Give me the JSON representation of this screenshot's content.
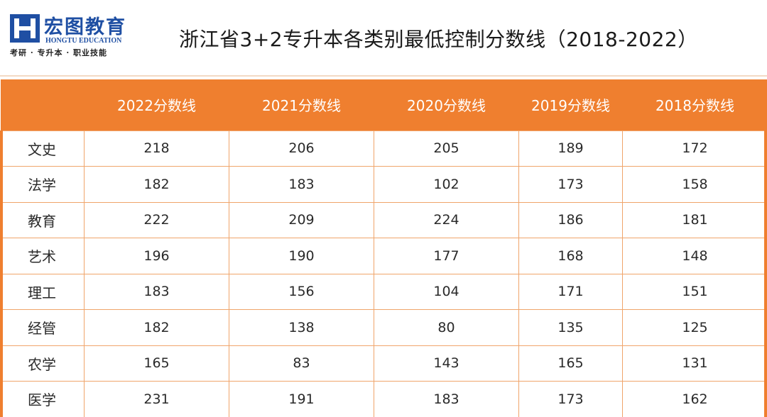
{
  "header": {
    "logo": {
      "name": "宏图教育",
      "english": "HONGTU EDUCATION",
      "slogan": "考研 · 专升本 · 职业技能"
    },
    "title": "浙江省3+2专升本各类别最低控制分数线（2018-2022）"
  },
  "colors": {
    "accent": "#ef7f2f",
    "brand": "#1f4fa3"
  },
  "table": {
    "headers": [
      "",
      "2022分数线",
      "2021分数线",
      "2020分数线",
      "2019分数线",
      "2018分数线"
    ],
    "rows": [
      [
        "文史",
        "218",
        "206",
        "205",
        "189",
        "172"
      ],
      [
        "法学",
        "182",
        "183",
        "102",
        "173",
        "158"
      ],
      [
        "教育",
        "222",
        "209",
        "224",
        "186",
        "181"
      ],
      [
        "艺术",
        "196",
        "190",
        "177",
        "168",
        "148"
      ],
      [
        "理工",
        "183",
        "156",
        "104",
        "171",
        "151"
      ],
      [
        "经管",
        "182",
        "138",
        "80",
        "135",
        "125"
      ],
      [
        "农学",
        "165",
        "83",
        "143",
        "165",
        "131"
      ],
      [
        "医学",
        "231",
        "191",
        "183",
        "173",
        "162"
      ]
    ]
  }
}
